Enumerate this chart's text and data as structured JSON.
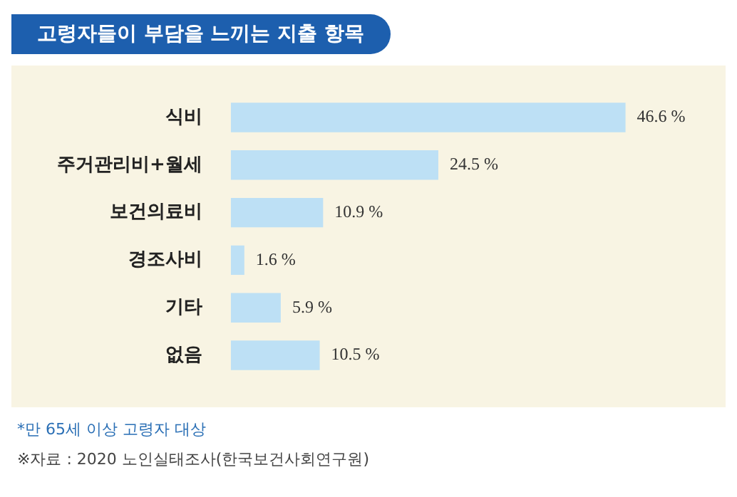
{
  "chart_data": {
    "type": "bar",
    "orientation": "horizontal",
    "title": "고령자들이 부담을 느끼는 지출 항목",
    "categories": [
      "식비",
      "주거관리비+월세",
      "보건의료비",
      "경조사비",
      "기타",
      "없음"
    ],
    "values": [
      46.6,
      24.5,
      10.9,
      1.6,
      5.9,
      10.5
    ],
    "value_labels": [
      "46.6 %",
      "24.5 %",
      "10.9 %",
      "1.6 %",
      "5.9 %",
      "10.5 %"
    ],
    "color": "#bde0f5",
    "legend": false,
    "annotations": [
      "*만 65세 이상 고령자 대상",
      "※자료 : 2020 노인실태조사(한국보건사회연구원)"
    ]
  }
}
